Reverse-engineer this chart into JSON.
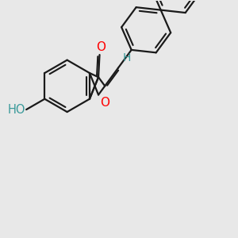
{
  "background_color": "#e8e8e8",
  "bond_color": "#1a1a1a",
  "oxygen_color": "#ff0000",
  "hydrogen_color": "#3a9a9a",
  "lw": 1.6,
  "figsize": [
    3.0,
    3.0
  ],
  "dpi": 100,
  "xlim": [
    0,
    10
  ],
  "ylim": [
    0,
    10
  ]
}
